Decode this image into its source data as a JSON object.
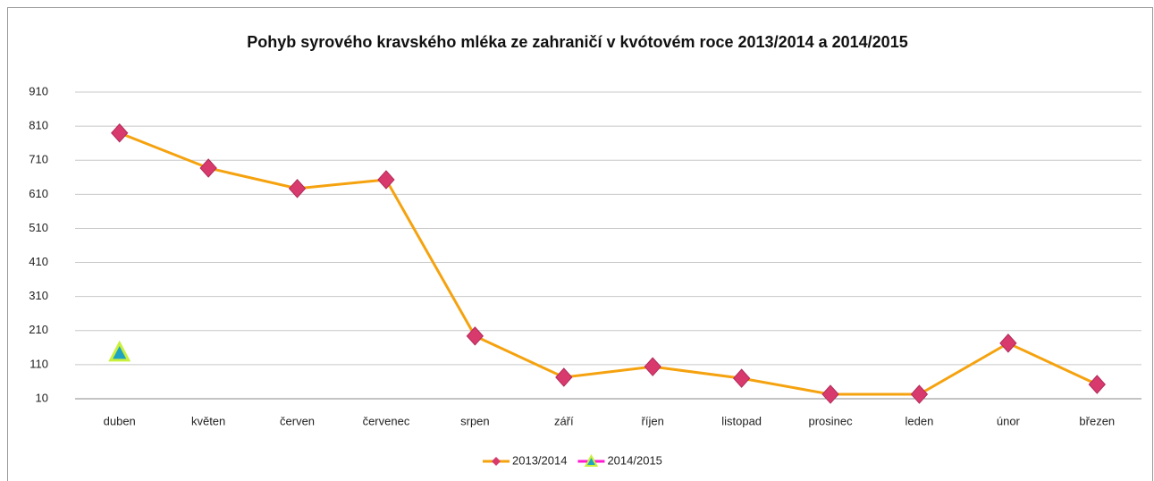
{
  "chart_data": {
    "type": "line",
    "title": "Pohyb syrového kravského mléka ze zahraničí v kvótovém roce 2013/2014 a 2014/2015",
    "categories": [
      "duben",
      "květen",
      "červen",
      "červenec",
      "srpen",
      "září",
      "říjen",
      "listopad",
      "prosinec",
      "leden",
      "únor",
      "březen"
    ],
    "series": [
      {
        "name": "2013/2014",
        "color": "#f5a20f",
        "marker": "diamond",
        "marker_color": "#d93a6e",
        "values": [
          790,
          687,
          627,
          653,
          194,
          73,
          104,
          70,
          23,
          23,
          173,
          52
        ]
      },
      {
        "name": "2014/2015",
        "color": "#ff1ad0",
        "marker": "triangle",
        "marker_color": "#c9f03c",
        "values": [
          144,
          null,
          null,
          null,
          null,
          null,
          null,
          null,
          null,
          null,
          null,
          null
        ]
      }
    ],
    "ylim": [
      10,
      910
    ],
    "yticks": [
      10,
      110,
      210,
      310,
      410,
      510,
      610,
      710,
      810,
      910
    ],
    "grid": true,
    "legend": "bottom"
  }
}
